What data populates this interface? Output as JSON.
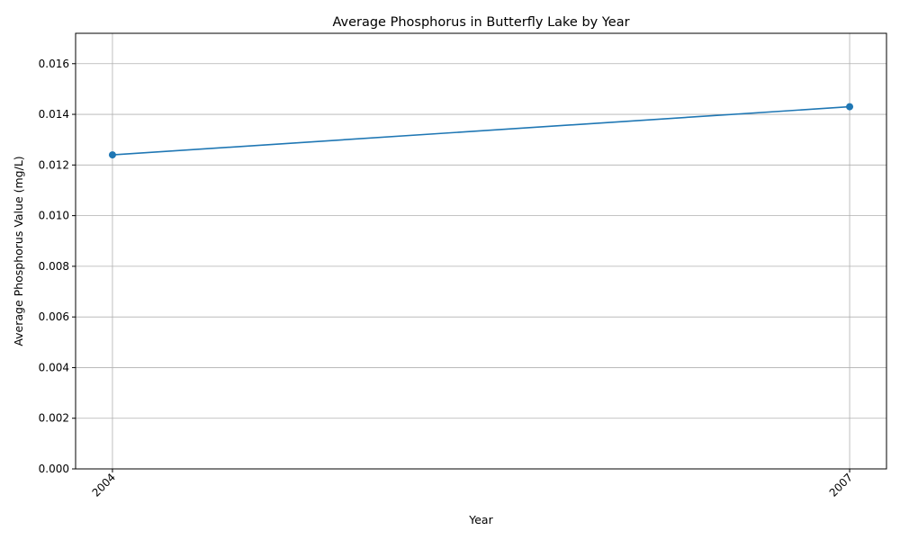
{
  "chart_data": {
    "type": "line",
    "title": "Average Phosphorus in Butterfly Lake by Year",
    "xlabel": "Year",
    "ylabel": "Average Phosphorus Value (mg/L)",
    "x": [
      "2004",
      "2007"
    ],
    "series": [
      {
        "values": [
          0.0124,
          0.0143
        ]
      }
    ],
    "xlim": [
      2003.85,
      2007.15
    ],
    "ylim": [
      0,
      0.0172
    ],
    "yticks": [
      "0.000",
      "0.002",
      "0.004",
      "0.006",
      "0.008",
      "0.010",
      "0.012",
      "0.014",
      "0.016"
    ],
    "xticks": [
      "2004",
      "2007"
    ],
    "grid": true,
    "colors": {
      "line": "#1f77b4",
      "grid": "#b0b0b0"
    }
  }
}
